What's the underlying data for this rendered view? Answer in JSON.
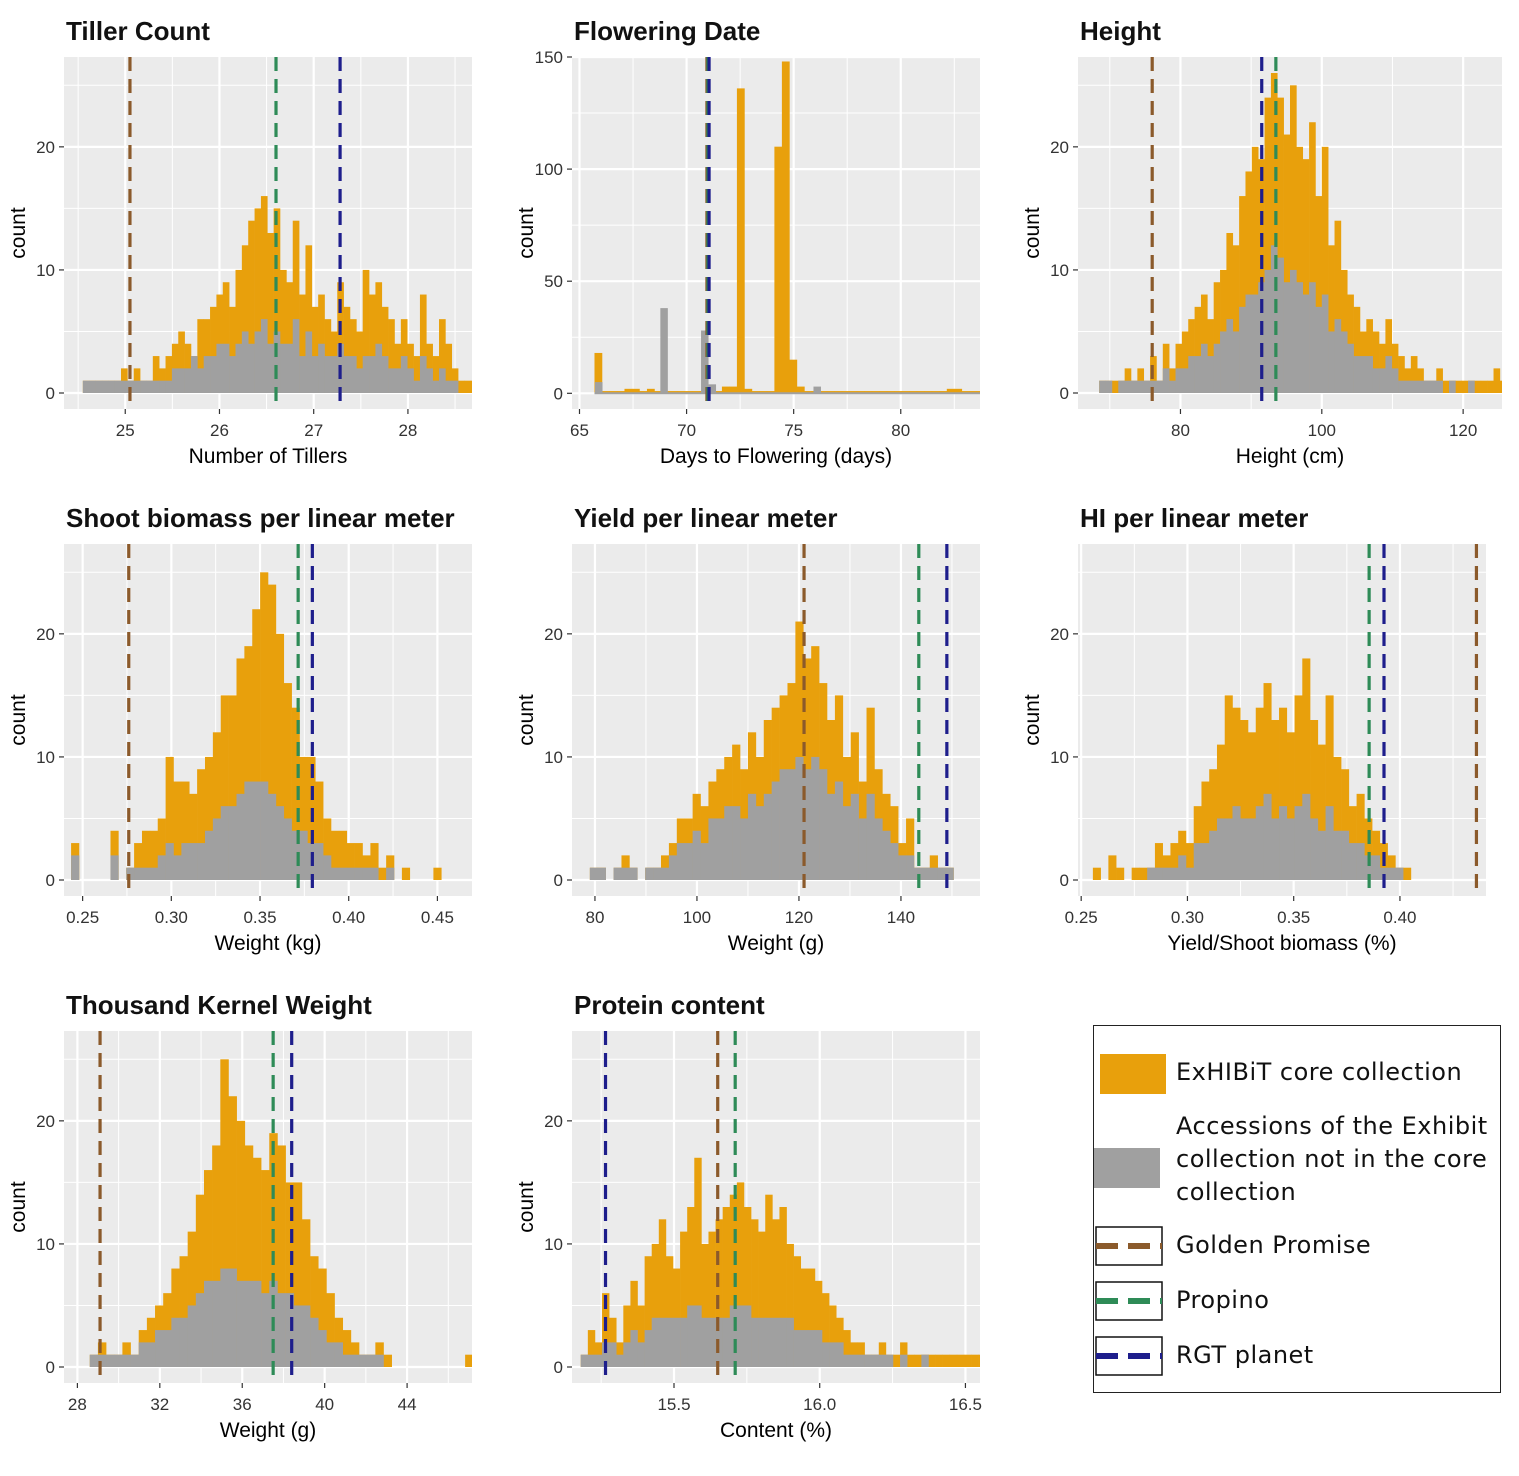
{
  "colors": {
    "core": "#e8a00c",
    "noncore": "#a0a0a0",
    "golden_promise": "#8b5a2b",
    "propino": "#2e8b57",
    "rgt_planet": "#1e1e8c",
    "panel_bg": "#ebebeb",
    "grid": "#ffffff"
  },
  "legend": {
    "core_label": "ExHIBiT core collection",
    "noncore_label_1": "Accessions of the Exhibit",
    "noncore_label_2": "collection not in the core",
    "noncore_label_3": "collection",
    "golden_label": "Golden Promise",
    "propino_label": "Propino",
    "rgt_label": "RGT planet"
  },
  "chart_data": [
    {
      "id": "tiller",
      "type": "bar",
      "title": "Tiller Count",
      "xlabel": "Number of Tillers",
      "ylabel": "count",
      "xlim": [
        24.35,
        28.68
      ],
      "ylim": [
        -1.3,
        27.3
      ],
      "xticks": [
        25,
        26,
        27,
        28
      ],
      "xtick_labels": [
        "25",
        "26",
        "27",
        "28"
      ],
      "yticks": [
        0,
        10,
        20
      ],
      "ytick_labels": [
        "0",
        "10",
        "20"
      ],
      "bin_start": 24.55,
      "bin_width": 0.0675,
      "core": [
        1,
        1,
        1,
        1,
        1,
        1,
        2,
        1,
        2,
        1,
        1,
        3,
        2,
        3,
        4,
        5,
        4,
        3,
        6,
        6,
        7,
        8,
        9,
        7,
        10,
        12,
        14,
        15,
        16,
        13,
        15,
        10,
        9,
        14,
        8,
        12,
        7,
        8,
        6,
        5,
        9,
        7,
        6,
        5,
        10,
        8,
        9,
        7,
        6,
        4,
        6,
        4,
        3,
        8,
        4,
        3,
        6,
        4,
        2,
        1,
        1,
        1
      ],
      "noncore": [
        1,
        1,
        1,
        1,
        1,
        1,
        1,
        1,
        1,
        1,
        1,
        1,
        1,
        1,
        2,
        2,
        2,
        3,
        2,
        3,
        3,
        4,
        4,
        3,
        4,
        5,
        4,
        5,
        6,
        4,
        5,
        4,
        4,
        6,
        3,
        5,
        3,
        4,
        3,
        3,
        4,
        3,
        3,
        2,
        3,
        3,
        4,
        3,
        2,
        2,
        3,
        2,
        1,
        3,
        2,
        1,
        2,
        1,
        1,
        0,
        0,
        0
      ],
      "refs": [
        {
          "name": "Golden Promise",
          "x": 25.05,
          "color": "#8b5a2b"
        },
        {
          "name": "Propino",
          "x": 26.6,
          "color": "#2e8b57"
        },
        {
          "name": "RGT planet",
          "x": 27.28,
          "color": "#1e1e8c"
        }
      ]
    },
    {
      "id": "flowering",
      "type": "bar",
      "title": "Flowering Date",
      "xlabel": "Days to Flowering (days)",
      "ylabel": "count",
      "xlim": [
        64.65,
        83.7
      ],
      "ylim": [
        -7,
        150
      ],
      "xticks": [
        65,
        70,
        75,
        80
      ],
      "xtick_labels": [
        "65",
        "70",
        "75",
        "80"
      ],
      "yticks": [
        0,
        50,
        100,
        150
      ],
      "ytick_labels": [
        "0",
        "50",
        "100",
        "150"
      ],
      "bin_start": 65.7,
      "bin_width": 0.35,
      "core": [
        18,
        1,
        1,
        1,
        2,
        2,
        1,
        2,
        1,
        1,
        1,
        1,
        1,
        1,
        1,
        2,
        1,
        3,
        3,
        136,
        2,
        1,
        1,
        1,
        110,
        148,
        15,
        3,
        1,
        1,
        1,
        1,
        1,
        1,
        1,
        1,
        1,
        1,
        1,
        1,
        1,
        1,
        1,
        1,
        1,
        1,
        1,
        2,
        2,
        1,
        1,
        1,
        1,
        1,
        1,
        1,
        1,
        1,
        1,
        1,
        1,
        1,
        1,
        2,
        0,
        0,
        0,
        0,
        0,
        0,
        0,
        0,
        0,
        0
      ],
      "noncore_points": [
        [
          65.9,
          5
        ],
        [
          68.95,
          38
        ],
        [
          70.85,
          28
        ],
        [
          71.2,
          4
        ],
        [
          76.1,
          3
        ]
      ],
      "refs": [
        {
          "name": "Golden Promise",
          "x": 70.95,
          "color": "#8b5a2b"
        },
        {
          "name": "Propino",
          "x": 71.0,
          "color": "#2e8b57"
        },
        {
          "name": "RGT planet",
          "x": 71.05,
          "color": "#1e1e8c"
        }
      ]
    },
    {
      "id": "height",
      "type": "bar",
      "title": "Height",
      "xlabel": "Height (cm)",
      "ylabel": "count",
      "xlim": [
        65.5,
        125.5
      ],
      "ylim": [
        -1.3,
        27.3
      ],
      "xticks": [
        80,
        100,
        120
      ],
      "xtick_labels": [
        "80",
        "100",
        "120"
      ],
      "yticks": [
        0,
        10,
        20
      ],
      "ytick_labels": [
        "0",
        "10",
        "20"
      ],
      "bin_start": 68.5,
      "bin_width": 0.9,
      "core": [
        1,
        1,
        1,
        1,
        2,
        1,
        2,
        1,
        3,
        1,
        4,
        2,
        4,
        5,
        6,
        7,
        8,
        6,
        9,
        10,
        13,
        12,
        16,
        18,
        20,
        19,
        24,
        26,
        24,
        21,
        25,
        20,
        19,
        22,
        16,
        20,
        12,
        14,
        10,
        8,
        7,
        5,
        6,
        5,
        4,
        6,
        4,
        3,
        2,
        3,
        2,
        1,
        1,
        2,
        1,
        1,
        1,
        1,
        1,
        1,
        1,
        1,
        2,
        1,
        1
      ],
      "noncore": [
        1,
        1,
        0,
        1,
        1,
        1,
        1,
        1,
        1,
        1,
        2,
        1,
        2,
        2,
        3,
        3,
        4,
        3,
        4,
        5,
        6,
        5,
        7,
        8,
        8,
        9,
        10,
        12,
        11,
        9,
        10,
        9,
        8,
        9,
        7,
        8,
        5,
        6,
        5,
        4,
        3,
        3,
        3,
        2,
        2,
        3,
        2,
        1,
        1,
        1,
        1,
        1,
        1,
        1,
        0,
        1,
        0,
        0,
        1,
        0,
        0,
        0,
        0,
        0,
        0
      ],
      "refs": [
        {
          "name": "Golden Promise",
          "x": 76,
          "color": "#8b5a2b"
        },
        {
          "name": "Propino",
          "x": 93.5,
          "color": "#2e8b57"
        },
        {
          "name": "RGT planet",
          "x": 91.5,
          "color": "#1e1e8c"
        }
      ]
    },
    {
      "id": "shoot",
      "type": "bar",
      "title": "Shoot biomass per linear meter",
      "xlabel": "Weight (kg)",
      "ylabel": "count",
      "xlim": [
        0.2395,
        0.4695
      ],
      "ylim": [
        -1.3,
        27.3
      ],
      "xticks": [
        0.25,
        0.3,
        0.35,
        0.4,
        0.45
      ],
      "xtick_labels": [
        "0.25",
        "0.30",
        "0.35",
        "0.40",
        "0.45"
      ],
      "yticks": [
        0,
        10,
        20
      ],
      "ytick_labels": [
        "0",
        "10",
        "20"
      ],
      "bin_start": 0.2435,
      "bin_width": 0.00444,
      "core": [
        3,
        0,
        0,
        0,
        0,
        4,
        0,
        1,
        3,
        4,
        4,
        5,
        10,
        8,
        8,
        7,
        9,
        10,
        12,
        15,
        15,
        18,
        19,
        22,
        25,
        24,
        20,
        16,
        14,
        10,
        10,
        8,
        5,
        4,
        4,
        3,
        3,
        2,
        3,
        1,
        2,
        0,
        1,
        0,
        0,
        0,
        1,
        0,
        0,
        0
      ],
      "noncore": [
        2,
        0,
        0,
        0,
        0,
        2,
        0,
        1,
        1,
        1,
        1,
        2,
        3,
        2,
        3,
        3,
        3,
        4,
        5,
        6,
        6,
        7,
        8,
        8,
        8,
        7,
        6,
        5,
        4,
        4,
        3,
        3,
        2,
        1,
        1,
        1,
        1,
        1,
        1,
        0,
        1,
        0,
        0,
        0,
        0,
        0,
        0,
        0,
        0,
        0
      ],
      "refs": [
        {
          "name": "Golden Promise",
          "x": 0.276,
          "color": "#8b5a2b"
        },
        {
          "name": "Propino",
          "x": 0.3715,
          "color": "#2e8b57"
        },
        {
          "name": "RGT planet",
          "x": 0.3795,
          "color": "#1e1e8c"
        }
      ]
    },
    {
      "id": "yield",
      "type": "bar",
      "title": "Yield per linear meter",
      "xlabel": "Weight (g)",
      "ylabel": "count",
      "xlim": [
        75.5,
        155.5
      ],
      "ylim": [
        -1.3,
        27.3
      ],
      "xticks": [
        80,
        100,
        120,
        140
      ],
      "xtick_labels": [
        "80",
        "100",
        "120",
        "140"
      ],
      "yticks": [
        0,
        10,
        20
      ],
      "ytick_labels": [
        "0",
        "10",
        "20"
      ],
      "bin_start": 79,
      "bin_width": 1.55,
      "core": [
        1,
        1,
        0,
        1,
        2,
        1,
        0,
        1,
        1,
        2,
        3,
        5,
        5,
        7,
        6,
        8,
        9,
        10,
        11,
        9,
        12,
        10,
        13,
        14,
        15,
        16,
        21,
        18,
        19,
        16,
        13,
        15,
        10,
        12,
        8,
        14,
        9,
        7,
        6,
        3,
        5,
        1,
        1,
        2,
        1,
        1
      ],
      "noncore": [
        1,
        1,
        0,
        1,
        1,
        1,
        0,
        1,
        1,
        1,
        2,
        3,
        3,
        4,
        3,
        5,
        5,
        6,
        6,
        5,
        7,
        6,
        7,
        8,
        9,
        9,
        10,
        9,
        10,
        9,
        7,
        8,
        6,
        7,
        5,
        7,
        5,
        4,
        3,
        2,
        2,
        1,
        1,
        1,
        1,
        1
      ],
      "refs": [
        {
          "name": "Golden Promise",
          "x": 121,
          "color": "#8b5a2b"
        },
        {
          "name": "Propino",
          "x": 143.5,
          "color": "#2e8b57"
        },
        {
          "name": "RGT planet",
          "x": 149,
          "color": "#1e1e8c"
        }
      ]
    },
    {
      "id": "hi",
      "type": "bar",
      "title": "HI per linear meter",
      "xlabel": "Yield/Shoot biomass (%)",
      "ylabel": "count",
      "xlim": [
        0.2485,
        0.4405
      ],
      "ylim": [
        -1.3,
        27.3
      ],
      "xticks": [
        0.25,
        0.3,
        0.35,
        0.4
      ],
      "xtick_labels": [
        "0.25",
        "0.30",
        "0.35",
        "0.40"
      ],
      "yticks": [
        0,
        10,
        20
      ],
      "ytick_labels": [
        "0",
        "10",
        "20"
      ],
      "bin_start": 0.2555,
      "bin_width": 0.00365,
      "core": [
        1,
        0,
        2,
        1,
        0,
        1,
        1,
        1,
        3,
        2,
        3,
        4,
        3,
        6,
        8,
        9,
        11,
        15,
        14,
        13,
        12,
        14,
        16,
        13,
        14,
        12,
        15,
        18,
        13,
        11,
        15,
        10,
        9,
        6,
        7,
        5,
        4,
        3,
        2,
        1,
        1,
        0
      ],
      "noncore": [
        0,
        0,
        0,
        0,
        0,
        0,
        0,
        1,
        1,
        1,
        1,
        2,
        1,
        3,
        3,
        4,
        5,
        5,
        6,
        5,
        5,
        6,
        7,
        5,
        6,
        5,
        6,
        7,
        5,
        4,
        6,
        4,
        4,
        3,
        3,
        2,
        2,
        1,
        1,
        1,
        0,
        0
      ],
      "refs": [
        {
          "name": "Golden Promise",
          "x": 0.436,
          "color": "#8b5a2b"
        },
        {
          "name": "Propino",
          "x": 0.3855,
          "color": "#2e8b57"
        },
        {
          "name": "RGT planet",
          "x": 0.3925,
          "color": "#1e1e8c"
        }
      ]
    },
    {
      "id": "tkw",
      "type": "bar",
      "title": "Thousand Kernel Weight",
      "xlabel": "Weight (g)",
      "ylabel": "count",
      "xlim": [
        27.35,
        47.15
      ],
      "ylim": [
        -1.3,
        27.3
      ],
      "xticks": [
        28,
        32,
        36,
        40,
        44
      ],
      "xtick_labels": [
        "28",
        "32",
        "36",
        "40",
        "44"
      ],
      "yticks": [
        0,
        10,
        20
      ],
      "ytick_labels": [
        "0",
        "10",
        "20"
      ],
      "bin_start": 28.6,
      "bin_width": 0.396,
      "core": [
        1,
        2,
        1,
        1,
        2,
        1,
        3,
        4,
        5,
        6,
        8,
        9,
        11,
        14,
        16,
        18,
        25,
        22,
        20,
        18,
        17,
        16,
        19,
        18,
        15,
        15,
        12,
        9,
        8,
        6,
        4,
        3,
        2,
        1,
        1,
        2,
        1,
        0,
        0,
        0,
        0,
        0,
        0,
        0,
        0,
        0,
        1
      ],
      "noncore": [
        1,
        1,
        1,
        1,
        1,
        1,
        2,
        2,
        3,
        3,
        4,
        4,
        5,
        6,
        7,
        7,
        8,
        8,
        7,
        7,
        7,
        6,
        7,
        6,
        6,
        5,
        5,
        4,
        3,
        2,
        2,
        1,
        1,
        1,
        1,
        1,
        0,
        0,
        0,
        0,
        0,
        0,
        0,
        0,
        0,
        0,
        0
      ],
      "refs": [
        {
          "name": "Golden Promise",
          "x": 29.1,
          "color": "#8b5a2b"
        },
        {
          "name": "Propino",
          "x": 37.5,
          "color": "#2e8b57"
        },
        {
          "name": "RGT planet",
          "x": 38.4,
          "color": "#1e1e8c"
        }
      ]
    },
    {
      "id": "protein",
      "type": "bar",
      "title": "Protein content",
      "xlabel": "Content (%)",
      "ylabel": "count",
      "xlim": [
        15.15,
        16.55
      ],
      "ylim": [
        -1.3,
        27.3
      ],
      "xticks": [
        15.5,
        16.0,
        16.5
      ],
      "xtick_labels": [
        "15.5",
        "16.0",
        "16.5"
      ],
      "yticks": [
        0,
        10,
        20
      ],
      "ytick_labels": [
        "0",
        "10",
        "20"
      ],
      "bin_start": 15.18,
      "bin_width": 0.02435,
      "core": [
        1,
        3,
        2,
        6,
        4,
        2,
        5,
        7,
        5,
        9,
        10,
        12,
        9,
        8,
        11,
        13,
        17,
        10,
        11,
        12,
        13,
        14,
        15,
        13,
        12,
        11,
        14,
        12,
        13,
        10,
        9,
        8,
        8,
        7,
        6,
        5,
        4,
        3,
        2,
        2,
        1,
        1,
        2,
        1,
        1,
        2,
        1,
        1,
        1,
        1,
        1,
        1,
        1,
        1,
        1,
        1,
        1,
        2
      ],
      "noncore": [
        1,
        1,
        1,
        2,
        2,
        1,
        2,
        3,
        2,
        3,
        4,
        4,
        4,
        4,
        4,
        5,
        5,
        4,
        4,
        4,
        4,
        5,
        5,
        5,
        4,
        4,
        4,
        4,
        4,
        4,
        3,
        3,
        3,
        3,
        2,
        2,
        2,
        1,
        1,
        1,
        1,
        1,
        1,
        1,
        0,
        1,
        0,
        0,
        1,
        0,
        0,
        0,
        0,
        0,
        0,
        0,
        0,
        1
      ],
      "refs": [
        {
          "name": "Golden Promise",
          "x": 15.65,
          "color": "#8b5a2b"
        },
        {
          "name": "Propino",
          "x": 15.71,
          "color": "#2e8b57"
        },
        {
          "name": "RGT planet",
          "x": 15.265,
          "color": "#1e1e8c"
        }
      ]
    }
  ]
}
